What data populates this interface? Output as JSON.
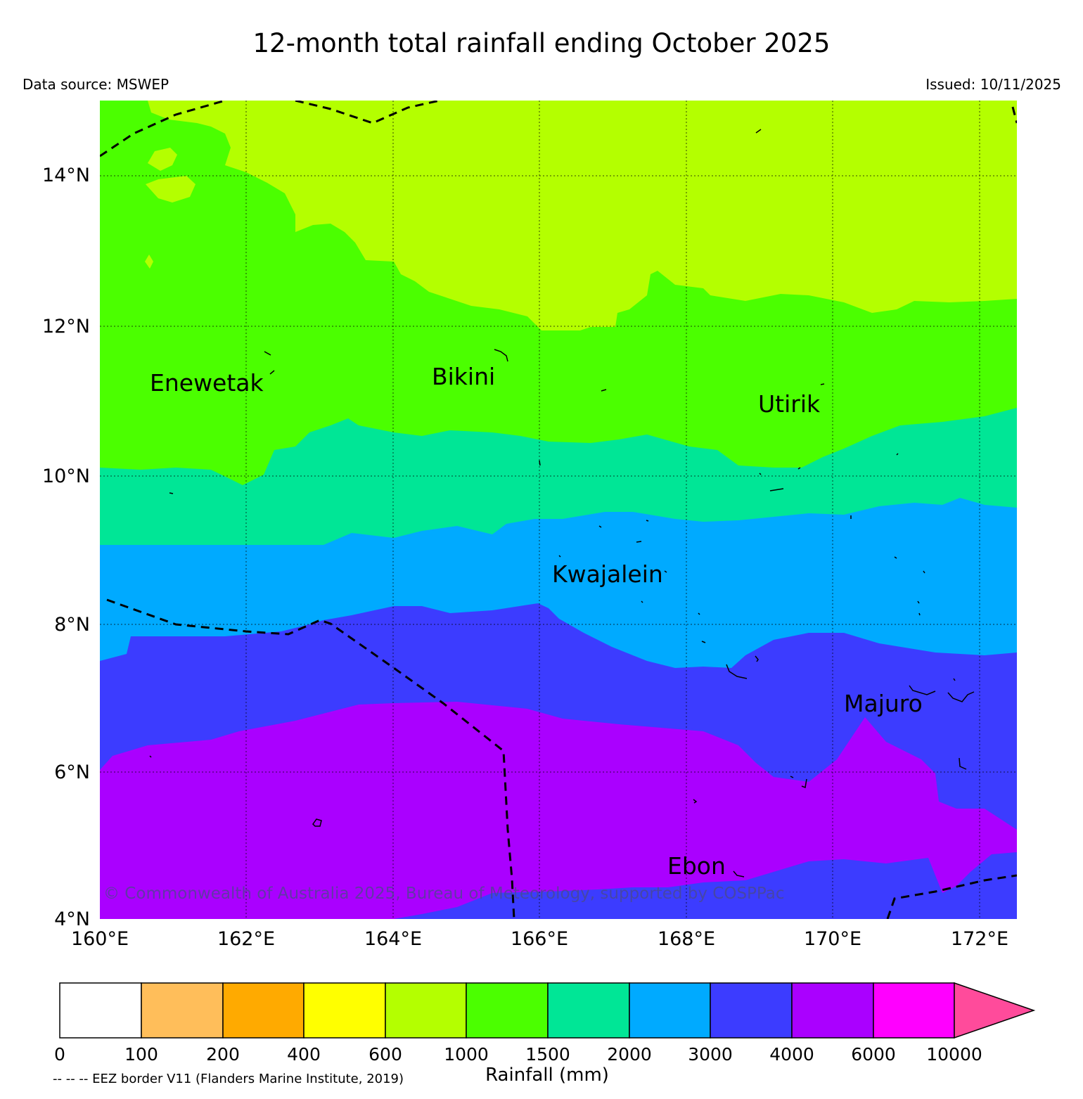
{
  "title": "12-month total rainfall ending October 2025",
  "source": "Data source: MSWEP",
  "issued": "Issued: 10/11/2025",
  "copyright": "© Commonwealth of Australia 2025, Bureau of Meteorology, supported by COSPPac",
  "eez_note": "-- -- -- EEZ border V11 (Flanders Marine Institute, 2019)",
  "lat_labels": [
    "14°N",
    "12°N",
    "10°N",
    "8°N",
    "6°N",
    "4°N"
  ],
  "lon_labels": [
    "160°E",
    "162°E",
    "164°E",
    "166°E",
    "168°E",
    "170°E",
    "172°E"
  ],
  "places": [
    "Enewetak",
    "Bikini",
    "Utirik",
    "Kwajalein",
    "Majuro",
    "Ebon"
  ],
  "legend": {
    "units": "Rainfall (mm)",
    "ticks": [
      "0",
      "100",
      "200",
      "400",
      "600",
      "1000",
      "1500",
      "2000",
      "3000",
      "4000",
      "6000",
      "10000"
    ],
    "colors": [
      "#ffffff",
      "#ffbe5a",
      "#ffaa00",
      "#ffff00",
      "#b4ff00",
      "#4bff00",
      "#00e696",
      "#00aaff",
      "#3c3cff",
      "#aa00ff",
      "#ff00ff",
      "#ff4b9b"
    ]
  },
  "band_colors": {
    "600-1000": "#b4ff00",
    "1000-1500": "#4bff00",
    "1500-2000": "#00e696",
    "2000-3000": "#00aaff",
    "3000-4000": "#3c3cff",
    "4000-6000": "#aa00ff"
  }
}
